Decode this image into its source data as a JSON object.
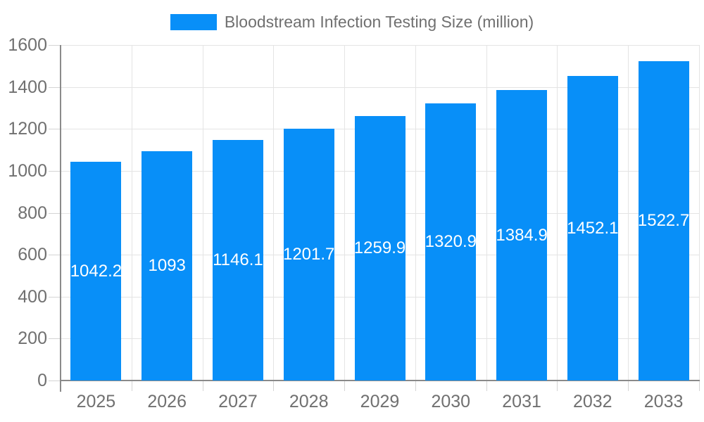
{
  "chart_data": {
    "type": "bar",
    "title": "Bloodstream Infection Testing Size (million)",
    "categories": [
      "2025",
      "2026",
      "2027",
      "2028",
      "2029",
      "2030",
      "2031",
      "2032",
      "2033"
    ],
    "series": [
      {
        "name": "Bloodstream Infection Testing Size (million)",
        "values": [
          1042.2,
          1093,
          1146.1,
          1201.7,
          1259.9,
          1320.9,
          1384.9,
          1452.1,
          1522.7
        ],
        "value_labels": [
          "1042.2",
          "1093",
          "1146.1",
          "1201.7",
          "1259.9",
          "1320.9",
          "1384.9",
          "1452.1",
          "1522.7"
        ]
      }
    ],
    "xlabel": "",
    "ylabel": "",
    "ylim": [
      0,
      1600
    ],
    "yticks": [
      0,
      200,
      400,
      600,
      800,
      1000,
      1200,
      1400,
      1600
    ],
    "grid": true,
    "legend_position": "top",
    "value_label_position": "center"
  },
  "legend": {
    "label": "Bloodstream Infection Testing Size (million)",
    "swatch_color": "#088FF8"
  },
  "colors": {
    "bar": "#088FF8",
    "grid": "#E4E4E4",
    "tick": "#D4D4D4",
    "axis": "#8A8A8A",
    "text": "#707070",
    "value_label": "#FFFFFF",
    "background": "#FFFFFF"
  }
}
